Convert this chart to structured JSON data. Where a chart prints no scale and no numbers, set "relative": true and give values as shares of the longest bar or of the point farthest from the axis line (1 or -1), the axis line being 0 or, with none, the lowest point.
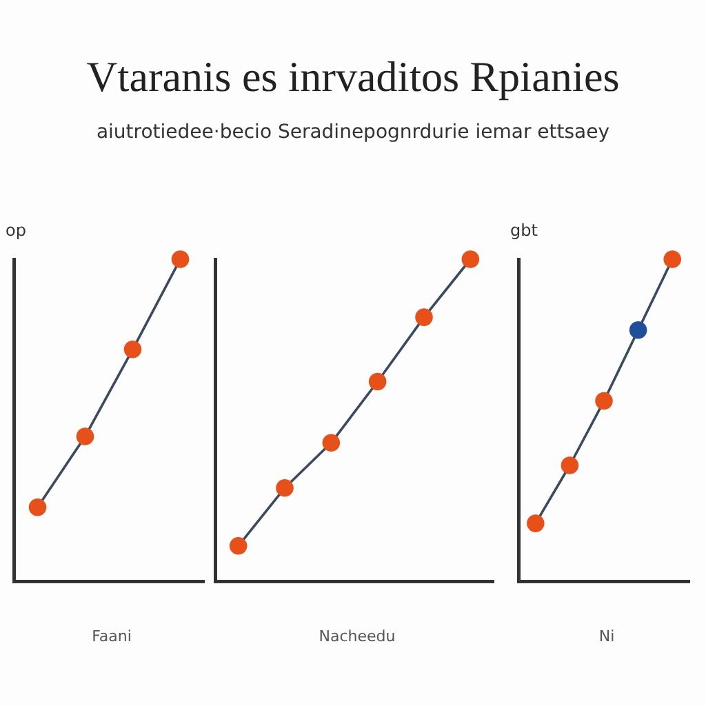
{
  "chart_data": [
    {
      "type": "line",
      "title": "Vtaranis es inrvaditos Rpianies",
      "subtitle": "aiutrotiedee·becio Seradinepognrdurie iemar ettsaey",
      "ylabel": "op",
      "xlabel": "Faani",
      "relative": true,
      "grid": false,
      "legend": false,
      "marker": "circle",
      "categories": [
        null,
        null,
        null,
        null
      ],
      "series": [
        {
          "color": "#3b4a5e",
          "colors": [
            "#e8501a",
            "#e8501a",
            "#e8501a",
            "#e8501a"
          ],
          "values": [
            0.23,
            0.45,
            0.72,
            1
          ]
        }
      ]
    },
    {
      "type": "line",
      "xlabel": "Nacheedu",
      "relative": true,
      "grid": false,
      "legend": false,
      "marker": "circle",
      "categories": [
        null,
        null,
        null,
        null,
        null,
        null
      ],
      "series": [
        {
          "color": "#3b4a5e",
          "colors": [
            "#e8501a",
            "#e8501a",
            "#e8501a",
            "#e8501a",
            "#e8501a",
            "#e8501a"
          ],
          "values": [
            0.11,
            0.29,
            0.43,
            0.62,
            0.82,
            1
          ]
        }
      ]
    },
    {
      "type": "line",
      "ylabel": "gbt",
      "xlabel": "Ni",
      "relative": true,
      "grid": false,
      "legend": false,
      "marker": "circle",
      "categories": [
        null,
        null,
        null,
        null,
        null
      ],
      "series": [
        {
          "color": "#3b4a5e",
          "colors": [
            "#e8501a",
            "#e8501a",
            "#e8501a",
            "#1f4e9c",
            "#e8501a"
          ],
          "values": [
            0.18,
            0.36,
            0.56,
            0.78,
            1
          ]
        }
      ]
    }
  ]
}
